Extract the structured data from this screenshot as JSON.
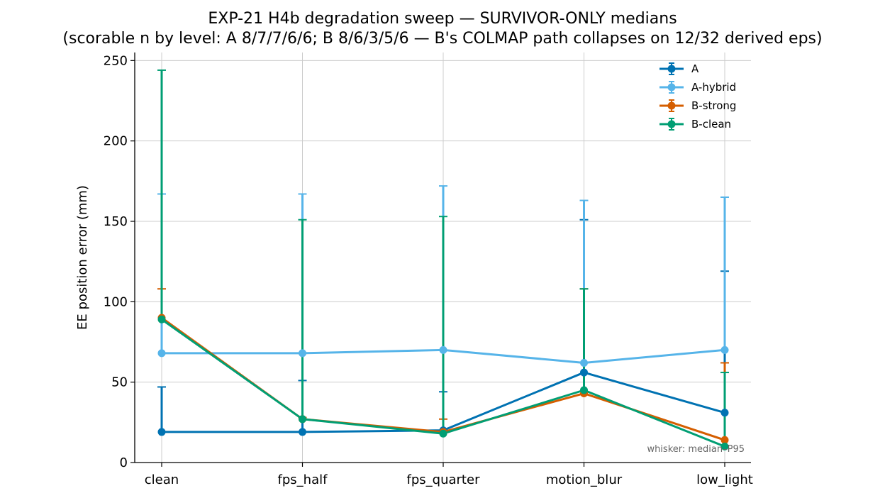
{
  "chart_data": {
    "type": "line",
    "title": [
      "EXP-21 H4b degradation sweep — SURVIVOR-ONLY medians",
      "(scorable n by level: A 8/7/7/6/6; B 8/6/3/5/6 — B's COLMAP path collapses on 12/32 derived eps)"
    ],
    "xlabel": "",
    "ylabel": "EE position error (mm)",
    "categories": [
      "clean",
      "fps_half",
      "fps_quarter",
      "motion_blur",
      "low_light"
    ],
    "ylim": [
      0,
      255
    ],
    "yticks": [
      0,
      50,
      100,
      150,
      200,
      250
    ],
    "grid": true,
    "legend_position": "top-right",
    "annotation": "whisker: median–P95",
    "series": [
      {
        "name": "A",
        "color": "#0072B2",
        "values": [
          19,
          19,
          20,
          56,
          31
        ],
        "p95": [
          47,
          51,
          44,
          151,
          119
        ]
      },
      {
        "name": "A-hybrid",
        "color": "#56B4E9",
        "values": [
          68,
          68,
          70,
          62,
          70
        ],
        "p95": [
          167,
          167,
          172,
          163,
          165
        ]
      },
      {
        "name": "B-strong",
        "color": "#D55E00",
        "values": [
          90,
          27,
          19,
          43,
          14
        ],
        "p95": [
          108,
          28,
          27,
          108,
          62
        ]
      },
      {
        "name": "B-clean",
        "color": "#009E73",
        "values": [
          89,
          27,
          18,
          45,
          10
        ],
        "p95": [
          244,
          151,
          153,
          108,
          56
        ]
      }
    ]
  }
}
